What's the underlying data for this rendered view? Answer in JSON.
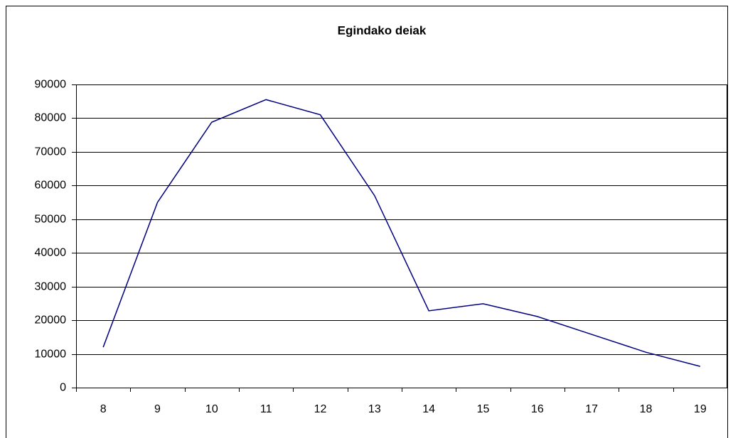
{
  "chart_data": {
    "type": "line",
    "title": "Egindako deiak",
    "categories": [
      8,
      9,
      10,
      11,
      12,
      13,
      14,
      15,
      16,
      17,
      18,
      19
    ],
    "series": [
      {
        "color": "#000080",
        "values": [
          12000,
          55000,
          78800,
          85500,
          81000,
          57000,
          22800,
          24900,
          21100,
          15800,
          10500,
          6300
        ]
      }
    ],
    "ylim": [
      0,
      90000
    ],
    "yticks": [
      0,
      10000,
      20000,
      30000,
      40000,
      50000,
      60000,
      70000,
      80000,
      90000
    ],
    "grid": true
  }
}
